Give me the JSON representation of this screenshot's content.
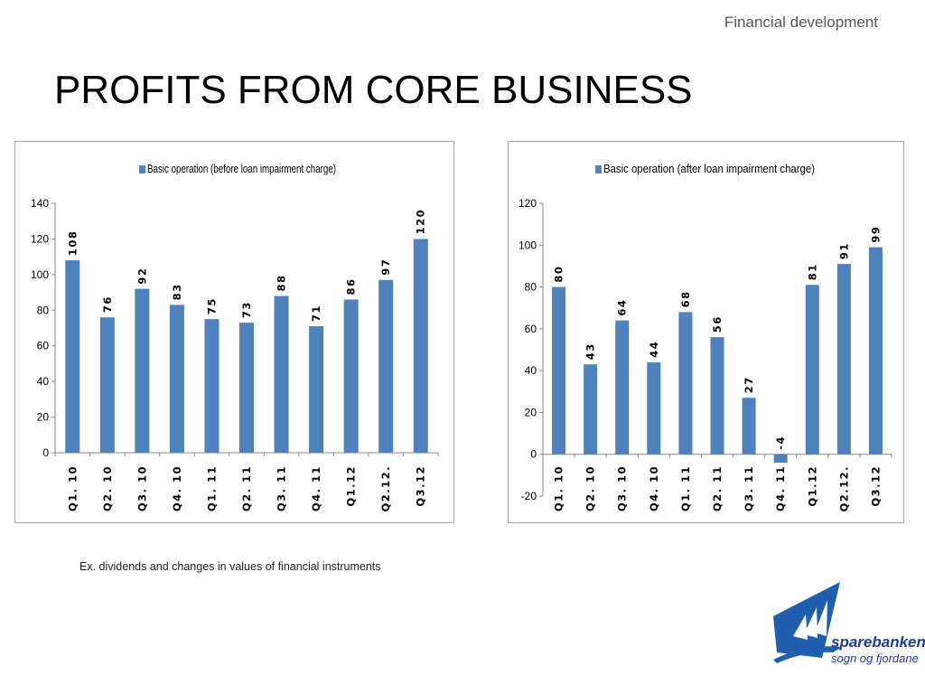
{
  "header_note": "Financial development",
  "title": "PROFITS FROM CORE BUSINESS",
  "footnote": "Ex. dividends and changes in values of financial instruments",
  "logo": {
    "line1": "sparebanken",
    "line2": "sogn og fjordane",
    "icon": "sparebanken-logo-icon",
    "color": "#1f3e9a"
  },
  "chart_data": [
    {
      "type": "bar",
      "legend": "Basic operation (before loan impairment charge)",
      "legend_position": "top",
      "categories": [
        "Q1. 10",
        "Q2. 10",
        "Q3. 10",
        "Q4. 10",
        "Q1. 11",
        "Q2. 11",
        "Q3. 11",
        "Q4. 11",
        "Q1.12",
        "Q2.12.",
        "Q3.12"
      ],
      "values": [
        108,
        76,
        92,
        83,
        75,
        73,
        88,
        71,
        86,
        97,
        120
      ],
      "data_labels": [
        "108",
        "76",
        "92",
        "83",
        "75",
        "73",
        "88",
        "71",
        "86",
        "97",
        "120"
      ],
      "ylim": [
        0,
        140
      ],
      "yticks": [
        0,
        20,
        40,
        60,
        80,
        100,
        120,
        140
      ],
      "grid": false,
      "color": "#4f81bd"
    },
    {
      "type": "bar",
      "legend": "Basic operation (after loan impairment charge)",
      "legend_position": "top",
      "categories": [
        "Q1. 10",
        "Q2. 10",
        "Q3. 10",
        "Q4. 10",
        "Q1. 11",
        "Q2. 11",
        "Q3. 11",
        "Q4. 11",
        "Q1.12",
        "Q2.12.",
        "Q3.12"
      ],
      "values": [
        80,
        43,
        64,
        44,
        68,
        56,
        27,
        -4,
        81,
        91,
        99
      ],
      "data_labels": [
        "80",
        "43",
        "64",
        "44",
        "68",
        "56",
        "27",
        "-4",
        "81",
        "91",
        "99"
      ],
      "ylim": [
        -20,
        120
      ],
      "yticks": [
        -20,
        0,
        20,
        40,
        60,
        80,
        100,
        120
      ],
      "grid": false,
      "color": "#4f81bd"
    }
  ]
}
